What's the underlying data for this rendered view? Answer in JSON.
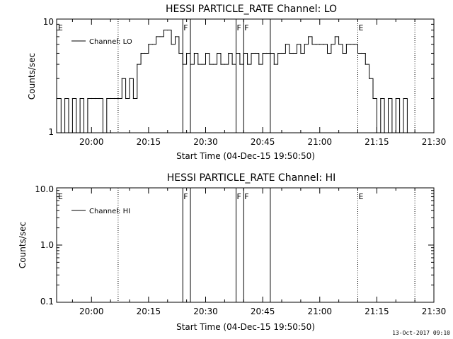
{
  "footer_timestamp": "13-Oct-2017 09:10",
  "chart_data": [
    {
      "type": "line",
      "title": "HESSI PARTICLE_RATE Channel: LO",
      "xlabel": "Start Time (04-Dec-15 19:50:50)",
      "ylabel": "Counts/sec",
      "y_scale": "log",
      "xlim": [
        "19:50:50",
        "21:30:00"
      ],
      "ylim": [
        1,
        10
      ],
      "x_ticks": [
        "20:00",
        "20:15",
        "20:30",
        "20:45",
        "21:00",
        "21:15",
        "21:30"
      ],
      "y_ticks": [
        "1",
        "10"
      ],
      "grid": false,
      "legend": {
        "position": "top-left",
        "entries": [
          "Channel: LO"
        ]
      },
      "series": [
        {
          "name": "Channel: LO",
          "x": [
            "19:51",
            "19:52",
            "19:53",
            "19:54",
            "19:55",
            "19:56",
            "19:57",
            "19:58",
            "19:59",
            "20:00",
            "20:01",
            "20:02",
            "20:03",
            "20:04",
            "20:05",
            "20:06",
            "20:07",
            "20:08",
            "20:09",
            "20:10",
            "20:11",
            "20:12",
            "20:13",
            "20:14",
            "20:15",
            "20:16",
            "20:17",
            "20:18",
            "20:19",
            "20:20",
            "20:21",
            "20:22",
            "20:23",
            "20:24",
            "20:25",
            "20:26",
            "20:27",
            "20:28",
            "20:29",
            "20:30",
            "20:31",
            "20:32",
            "20:33",
            "20:34",
            "20:35",
            "20:36",
            "20:37",
            "20:38",
            "20:39",
            "20:40",
            "20:41",
            "20:42",
            "20:43",
            "20:44",
            "20:45",
            "20:46",
            "20:47",
            "20:48",
            "20:49",
            "20:50",
            "20:51",
            "20:52",
            "20:53",
            "20:54",
            "20:55",
            "20:56",
            "20:57",
            "20:58",
            "20:59",
            "21:00",
            "21:01",
            "21:02",
            "21:03",
            "21:04",
            "21:05",
            "21:06",
            "21:07",
            "21:08",
            "21:09",
            "21:10",
            "21:11",
            "21:12",
            "21:13",
            "21:14",
            "21:15",
            "21:16",
            "21:17",
            "21:18",
            "21:19",
            "21:20",
            "21:21",
            "21:22",
            "21:23"
          ],
          "y": [
            2,
            1,
            2,
            1,
            2,
            1,
            2,
            1,
            2,
            2,
            2,
            2,
            1,
            2,
            2,
            2,
            2,
            3,
            2,
            3,
            2,
            4,
            5,
            5,
            6,
            6,
            7,
            7,
            8,
            8,
            6,
            7,
            5,
            4,
            5,
            4,
            5,
            4,
            4,
            5,
            4,
            4,
            5,
            4,
            4,
            5,
            4,
            5,
            4,
            5,
            4,
            5,
            5,
            4,
            5,
            5,
            5,
            4,
            5,
            5,
            6,
            5,
            5,
            6,
            5,
            6,
            7,
            6,
            6,
            6,
            6,
            5,
            6,
            7,
            6,
            5,
            6,
            6,
            6,
            5,
            5,
            4,
            3,
            2,
            1,
            2,
            1,
            2,
            1,
            2,
            1,
            2,
            1
          ]
        }
      ],
      "flags": [
        {
          "label": "E",
          "x": "19:51"
        },
        {
          "label": "F",
          "x": "20:24"
        },
        {
          "label": "F",
          "x": "20:38"
        },
        {
          "label": "F",
          "x": "20:40"
        },
        {
          "label": "E",
          "x": "21:10"
        }
      ]
    },
    {
      "type": "line",
      "title": "HESSI PARTICLE_RATE Channel: HI",
      "xlabel": "Start Time (04-Dec-15 19:50:50)",
      "ylabel": "Counts/sec",
      "y_scale": "log",
      "xlim": [
        "19:50:50",
        "21:30:00"
      ],
      "ylim": [
        0.1,
        10.0
      ],
      "x_ticks": [
        "20:00",
        "20:15",
        "20:30",
        "20:45",
        "21:00",
        "21:15",
        "21:30"
      ],
      "y_ticks": [
        "0.1",
        "1.0",
        "10.0"
      ],
      "grid": false,
      "legend": {
        "position": "top-left",
        "entries": [
          "Channel: HI"
        ]
      },
      "series": [
        {
          "name": "Channel: HI",
          "x": [],
          "y": []
        }
      ],
      "flags": [
        {
          "label": "E",
          "x": "19:51"
        },
        {
          "label": "F",
          "x": "20:24"
        },
        {
          "label": "F",
          "x": "20:38"
        },
        {
          "label": "F",
          "x": "20:40"
        },
        {
          "label": "E",
          "x": "21:10"
        }
      ]
    }
  ]
}
